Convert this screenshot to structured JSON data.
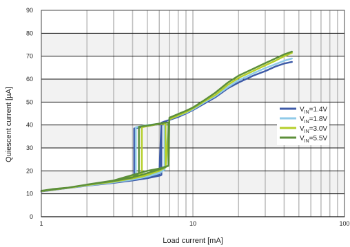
{
  "chart_data": {
    "type": "line",
    "title": "",
    "xlabel": "Load current [mA]",
    "ylabel": "Quiescent current [µA]",
    "x_scale": "log",
    "xlim": [
      1,
      100
    ],
    "ylim": [
      0,
      90
    ],
    "x_ticks": [
      {
        "value": 1,
        "label": "1"
      },
      {
        "value": 10,
        "label": "10"
      },
      {
        "value": 100,
        "label": "100"
      }
    ],
    "y_ticks": [
      {
        "value": 0,
        "label": "0"
      },
      {
        "value": 10,
        "label": "10"
      },
      {
        "value": 20,
        "label": "20"
      },
      {
        "value": 30,
        "label": "30"
      },
      {
        "value": 40,
        "label": "40"
      },
      {
        "value": 50,
        "label": "50"
      },
      {
        "value": 60,
        "label": "60"
      },
      {
        "value": 70,
        "label": "70"
      },
      {
        "value": 80,
        "label": "80"
      },
      {
        "value": 90,
        "label": "90"
      }
    ],
    "grid": true,
    "legend_position": "right",
    "series": [
      {
        "name": "VIN=1.4V",
        "legend": {
          "main": "V",
          "sub": "IN",
          "rest": "=1.4V"
        },
        "color": "#3e5ba8",
        "x": [
          1,
          1.5,
          2,
          3,
          4,
          5,
          6.1,
          6.2,
          6.2,
          6.1,
          5,
          4.1,
          4.1,
          4.1,
          3,
          2,
          1.5,
          1,
          1.2,
          1.5,
          2,
          2.5,
          3,
          3.5,
          4,
          4.5,
          5,
          5.5,
          6,
          6.2,
          6.5,
          7,
          8,
          9,
          10,
          12,
          14,
          17,
          20,
          25,
          30,
          35,
          40,
          45
        ],
        "y": [
          11,
          12.5,
          13.5,
          14.8,
          15.8,
          16.8,
          18,
          18.2,
          40.5,
          40.5,
          39.5,
          38.5,
          38.5,
          17,
          15,
          13.5,
          12.5,
          11,
          11.8,
          12.5,
          13.5,
          14.3,
          15,
          15.7,
          16.2,
          16.9,
          17.4,
          17.9,
          18.2,
          41,
          41.5,
          42.2,
          43.5,
          45,
          46.5,
          49.5,
          52,
          56,
          58.5,
          61.5,
          63.5,
          65.5,
          66.8,
          67.5
        ]
      },
      {
        "name": "VIN=1.8V",
        "legend": {
          "main": "V",
          "sub": "IN",
          "rest": "=1.8V"
        },
        "color": "#8fcae8",
        "x": [
          1,
          1.5,
          2,
          3,
          4,
          5,
          6,
          6.5,
          6.5,
          6.5,
          6,
          5,
          4.2,
          4.2,
          4.2,
          3,
          2,
          1.5,
          1,
          1.2,
          1.5,
          2,
          2.5,
          3,
          3.5,
          4,
          4.5,
          5,
          5.5,
          6,
          6.5,
          7,
          8,
          9,
          10,
          12,
          14,
          17,
          20,
          25,
          30,
          35,
          40,
          45
        ],
        "y": [
          11.2,
          12.6,
          13.6,
          15,
          16.2,
          17.5,
          19,
          20.5,
          40.5,
          40.5,
          40.5,
          40,
          39,
          39,
          17.5,
          15.2,
          13.6,
          12.6,
          11.2,
          12,
          12.6,
          13.6,
          14.5,
          15.2,
          15.9,
          16.5,
          17.2,
          17.8,
          18.4,
          19.2,
          20.5,
          42.5,
          44,
          45.3,
          46.8,
          50,
          52.5,
          56.5,
          59.5,
          62.5,
          64.8,
          66.5,
          68,
          69
        ]
      },
      {
        "name": "VIN=3.0V",
        "legend": {
          "main": "V",
          "sub": "IN",
          "rest": "=3.0V"
        },
        "color": "#b5cf2a",
        "x": [
          1,
          1.5,
          2,
          3,
          4,
          4.6,
          5,
          6,
          6.6,
          6.6,
          6.6,
          6.6,
          6,
          5,
          4.6,
          4.6,
          4.6,
          4.3,
          3,
          2,
          1.5,
          1,
          1.2,
          1.5,
          2,
          2.5,
          3,
          3.5,
          4,
          4.5,
          5,
          5.5,
          6,
          6.6,
          7,
          8,
          9,
          10,
          12,
          14,
          17,
          20,
          25,
          30,
          35,
          40,
          45
        ],
        "y": [
          11.2,
          12.6,
          13.8,
          15.3,
          16.7,
          17.5,
          18.2,
          20,
          21.5,
          21.5,
          40.5,
          40.5,
          40.5,
          39.5,
          39,
          39,
          19,
          18.5,
          15.5,
          13.8,
          12.6,
          11.2,
          12,
          12.6,
          13.8,
          14.8,
          15.5,
          16.2,
          16.9,
          17.5,
          18.3,
          19.2,
          20.2,
          21.5,
          42.5,
          44.2,
          45.6,
          47.2,
          50.5,
          53,
          57.5,
          60.5,
          63.5,
          66,
          68,
          70,
          71.5
        ]
      },
      {
        "name": "VIN=5.5V",
        "legend": {
          "main": "V",
          "sub": "IN",
          "rest": "=5.5V"
        },
        "color": "#5c8f3a",
        "x": [
          1,
          1.5,
          2,
          3,
          4,
          4.4,
          5,
          6,
          6.9,
          6.9,
          6.9,
          6.5,
          5.5,
          4.4,
          4.4,
          4.4,
          3,
          2,
          1.5,
          1,
          1.2,
          1.5,
          2,
          2.5,
          3,
          3.5,
          4,
          4.5,
          5,
          5.5,
          6,
          6.9,
          7,
          8,
          9,
          10,
          12,
          14,
          17,
          20,
          25,
          30,
          35,
          40,
          45
        ],
        "y": [
          11.3,
          12.7,
          14,
          15.6,
          17.1,
          19,
          20,
          21,
          22.2,
          22.2,
          41,
          41,
          40.2,
          39.2,
          39.2,
          19,
          15.8,
          14,
          12.7,
          11.3,
          12.1,
          12.7,
          14,
          14.9,
          15.8,
          16.5,
          17.2,
          18.1,
          19,
          19.8,
          20.6,
          22.2,
          43.2,
          44.8,
          46.2,
          47.6,
          51,
          54,
          58.5,
          61.5,
          64.5,
          67,
          69,
          70.8,
          72
        ]
      }
    ]
  }
}
